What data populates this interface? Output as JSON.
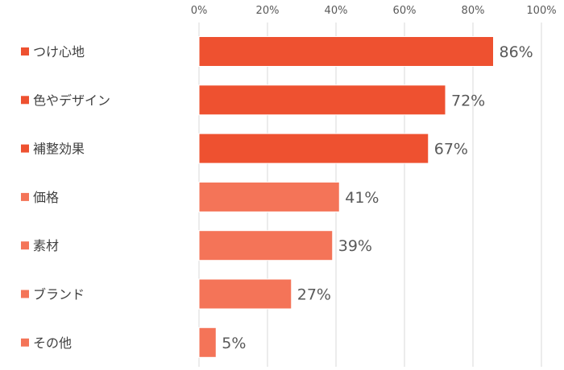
{
  "chart_data": {
    "type": "bar",
    "orientation": "horizontal",
    "categories": [
      "つけ心地",
      "色やデザイン",
      "補整効果",
      "価格",
      "素材",
      "ブランド",
      "その他"
    ],
    "values": [
      86,
      72,
      67,
      41,
      39,
      27,
      5
    ],
    "value_labels": [
      "86%",
      "72%",
      "67%",
      "41%",
      "39%",
      "27%",
      "5%"
    ],
    "xlim": [
      0,
      100
    ],
    "x_ticks": [
      0,
      20,
      40,
      60,
      80,
      100
    ],
    "x_tick_labels": [
      "0%",
      "20%",
      "40%",
      "60%",
      "80%",
      "100%"
    ],
    "x_axis_position": "top",
    "grid": true,
    "colors": {
      "highlight": "#EE5130",
      "normal": "#F47458",
      "grid": "#D9D9D9"
    },
    "highlight_categories": [
      "つけ心地",
      "色やデザイン",
      "補整効果"
    ]
  }
}
